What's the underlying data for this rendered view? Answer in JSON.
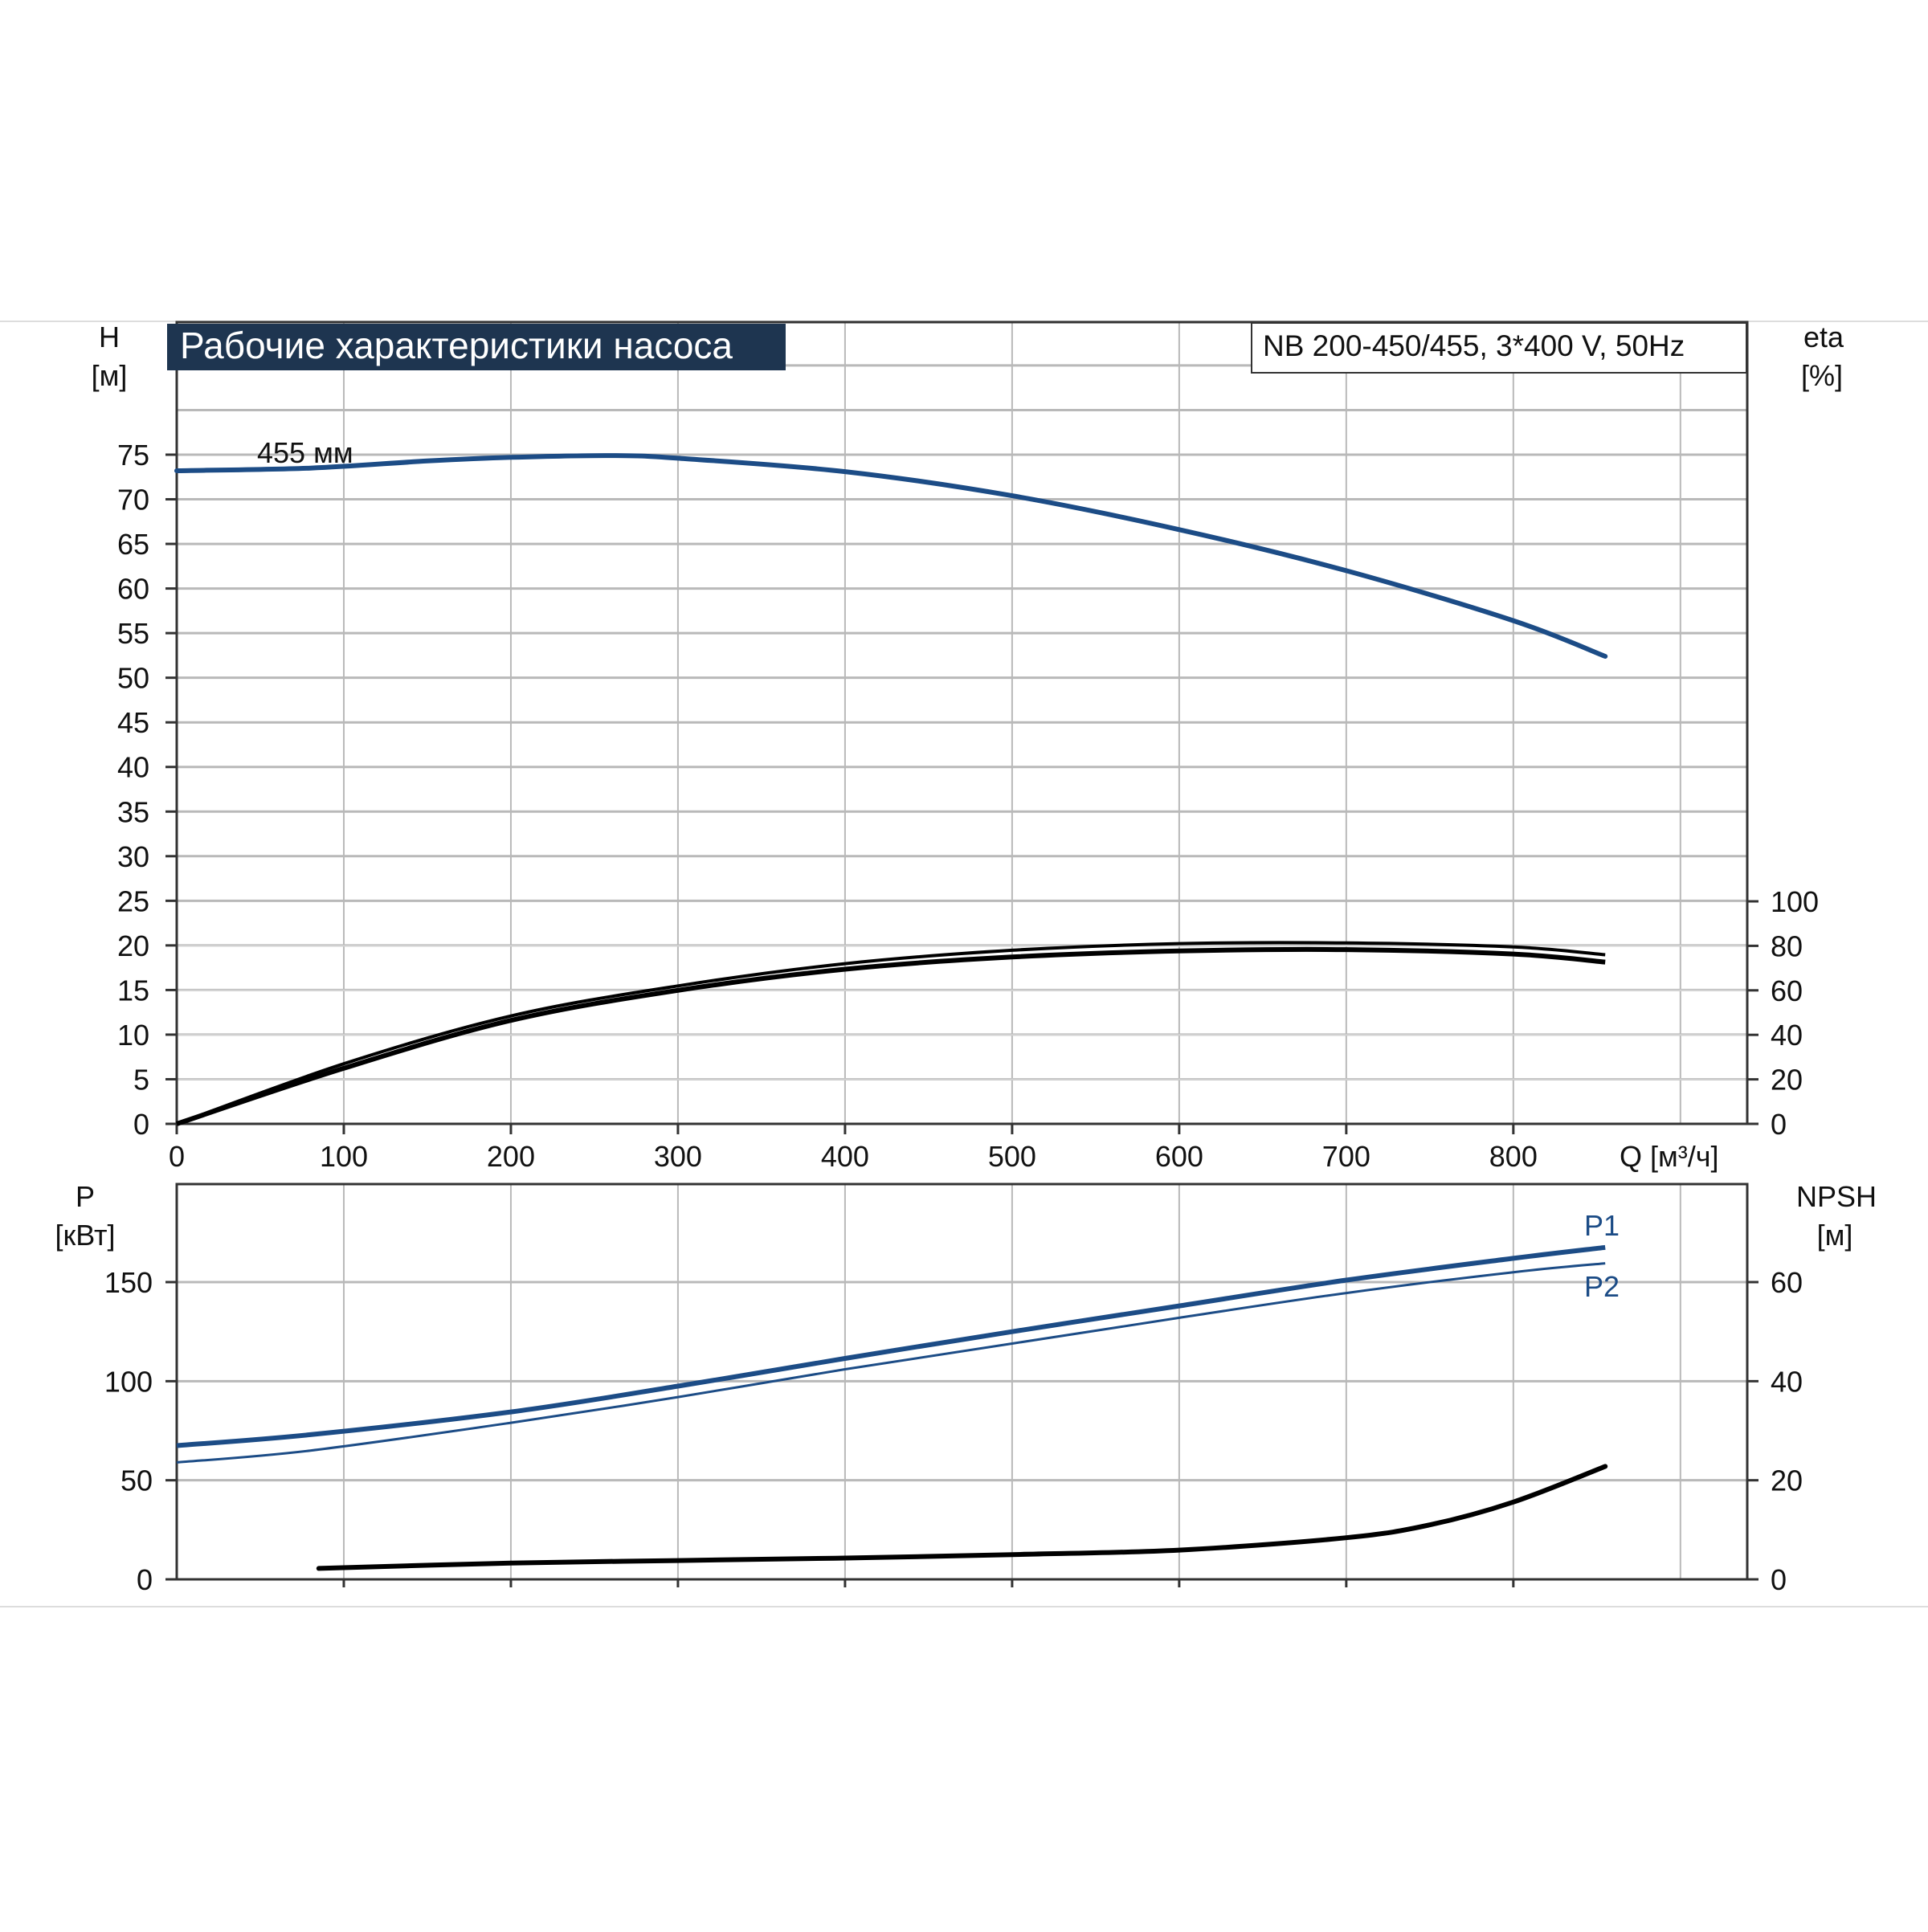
{
  "colors": {
    "blue": "#1c4c86",
    "black": "#000000",
    "title_box": "#1e3550",
    "grid": "#b9b9b9"
  },
  "header": {
    "title": "Рабочие характеристики насоса",
    "model": "NB 200-450/455, 3*400 V, 50Hz"
  },
  "chart_data": [
    {
      "type": "line",
      "name": "upper",
      "xlabel": "Q [м³/ч]",
      "x_ticks": [
        "0",
        "100",
        "200",
        "300",
        "400",
        "500",
        "600",
        "700",
        "800"
      ],
      "xlim": [
        0,
        940
      ],
      "left_axis": {
        "label": [
          "H",
          "[м]"
        ],
        "ylim": [
          0,
          75
        ],
        "ticks": [
          "0",
          "5",
          "10",
          "15",
          "20",
          "25",
          "30",
          "35",
          "40",
          "45",
          "50",
          "55",
          "60",
          "65",
          "70",
          "75"
        ]
      },
      "right_axis": {
        "label": [
          "eta",
          "[%]"
        ],
        "ylim": [
          0,
          100
        ],
        "ticks": [
          "0",
          "20",
          "40",
          "60",
          "80",
          "100"
        ]
      },
      "annotations": [
        "455 мм"
      ],
      "series": [
        {
          "axis": "left",
          "color": "#1c4c86",
          "x": [
            0,
            80,
            150,
            200,
            260,
            300,
            400,
            500,
            600,
            700,
            800,
            855
          ],
          "y": [
            73.2,
            73.5,
            74.3,
            74.7,
            74.9,
            74.6,
            73.1,
            70.4,
            66.6,
            62.0,
            56.4,
            52.4
          ]
        },
        {
          "axis": "right",
          "color": "#000000",
          "x": [
            0,
            100,
            200,
            300,
            400,
            500,
            600,
            700,
            800,
            855
          ],
          "y": [
            0,
            27,
            48.5,
            62,
            72,
            78,
            81,
            81.3,
            79.5,
            76
          ]
        },
        {
          "axis": "right",
          "color": "#000000",
          "x": [
            0,
            100,
            200,
            300,
            400,
            500,
            600,
            700,
            800,
            855
          ],
          "y": [
            0,
            25,
            46.5,
            60,
            69.5,
            75,
            77.7,
            78.3,
            76.3,
            72.7
          ]
        }
      ]
    },
    {
      "type": "line",
      "name": "lower",
      "x_ticks": [
        "100",
        "200",
        "300",
        "400",
        "500",
        "600",
        "700",
        "800"
      ],
      "xlim": [
        0,
        940
      ],
      "left_axis": {
        "label": [
          "P",
          "[кВт]"
        ],
        "ylim": [
          0,
          200
        ],
        "ticks": [
          "0",
          "50",
          "100",
          "150"
        ]
      },
      "right_axis": {
        "label": [
          "NPSH",
          "[м]"
        ],
        "ylim": [
          0,
          80
        ],
        "ticks": [
          "0",
          "20",
          "40",
          "60"
        ]
      },
      "series": [
        {
          "name": "P1",
          "axis": "left",
          "color": "#1c4c86",
          "x": [
            0,
            80,
            200,
            300,
            400,
            500,
            600,
            700,
            800,
            855
          ],
          "y": [
            67.5,
            73,
            84.5,
            97.5,
            111.5,
            125,
            138,
            151,
            162,
            167.5
          ]
        },
        {
          "name": "P2",
          "axis": "left",
          "color": "#1c4c86",
          "x": [
            0,
            80,
            200,
            300,
            400,
            500,
            600,
            700,
            800,
            855
          ],
          "y": [
            59,
            65,
            79,
            92,
            106,
            119,
            132,
            144.5,
            155,
            159.5
          ]
        },
        {
          "axis": "right",
          "color": "#000000",
          "x": [
            85,
            200,
            300,
            400,
            500,
            600,
            700,
            750,
            800,
            855
          ],
          "y": [
            2.2,
            3.3,
            3.8,
            4.3,
            5.0,
            5.9,
            8.4,
            11.0,
            15.6,
            22.8
          ]
        }
      ]
    }
  ]
}
